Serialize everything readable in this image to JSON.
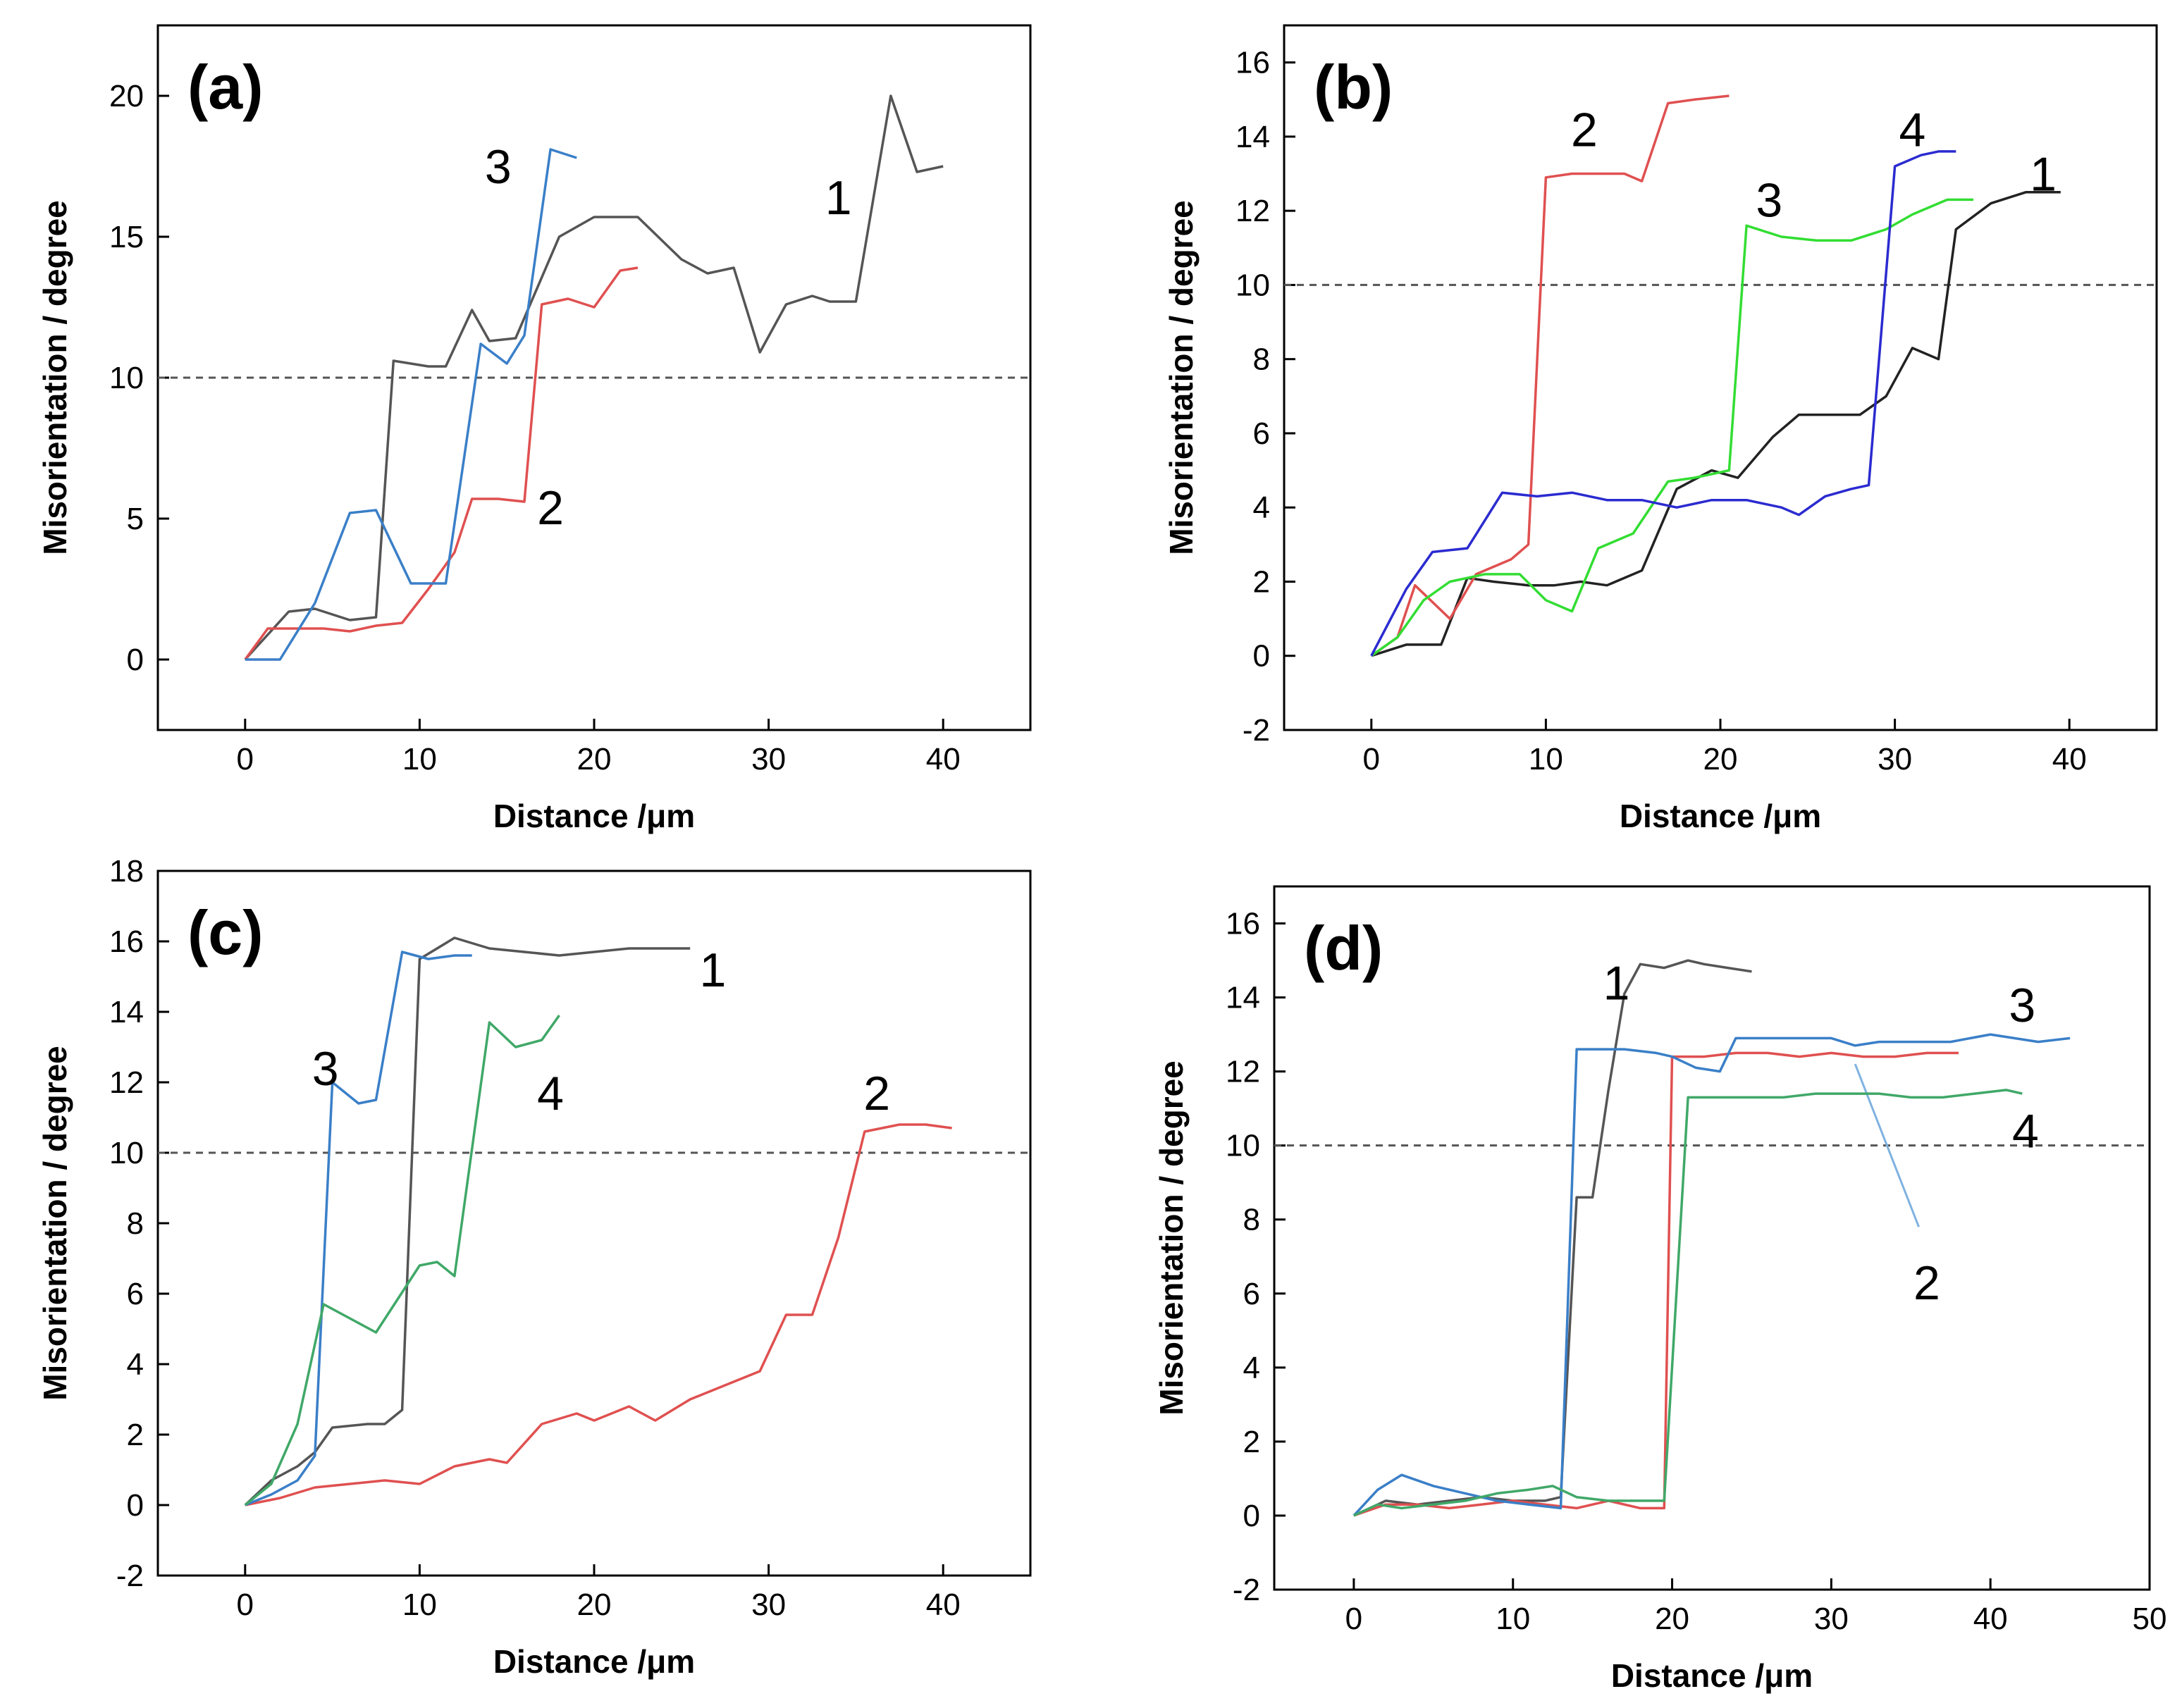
{
  "chart_data": [
    {
      "panel": "(a)",
      "type": "line",
      "xlabel": "Distance /μm",
      "ylabel": "Misorientation / degree",
      "xlim": [
        -5,
        45
      ],
      "ylim": [
        -2.5,
        22.5
      ],
      "xticks": [
        0,
        10,
        20,
        30,
        40
      ],
      "yticks": [
        0,
        5,
        10,
        15,
        20
      ],
      "threshold": 10,
      "series": [
        {
          "name": "1",
          "color": "#555555",
          "x": [
            0,
            2.5,
            4,
            6,
            7.5,
            8.5,
            10.5,
            11.5,
            13,
            14,
            15.5,
            18,
            20,
            22.5,
            25,
            26.5,
            28,
            29.5,
            31,
            32.5,
            33.5,
            35,
            37,
            38.5,
            40
          ],
          "y": [
            0,
            1.7,
            1.8,
            1.4,
            1.5,
            10.6,
            10.4,
            10.4,
            12.4,
            11.3,
            11.4,
            15,
            15.7,
            15.7,
            14.2,
            13.7,
            13.9,
            10.9,
            12.6,
            12.9,
            12.7,
            12.7,
            20,
            17.3,
            17.5
          ],
          "label_x": 34,
          "label_y": 16.4
        },
        {
          "name": "2",
          "color": "#e05050",
          "x": [
            0,
            1.3,
            3,
            4.5,
            6,
            7.5,
            9,
            10.5,
            12,
            13,
            14.5,
            16,
            17,
            18.5,
            20,
            21.5,
            22.5
          ],
          "y": [
            0,
            1.1,
            1.1,
            1.1,
            1,
            1.2,
            1.3,
            2.5,
            3.8,
            5.7,
            5.7,
            5.6,
            12.6,
            12.8,
            12.5,
            13.8,
            13.9
          ],
          "label_x": 17.5,
          "label_y": 5.4
        },
        {
          "name": "3",
          "color": "#3a7fc8",
          "x": [
            0,
            2,
            4,
            6,
            7.5,
            9.5,
            11.5,
            13.5,
            15,
            16,
            17.5,
            19
          ],
          "y": [
            0,
            0,
            2,
            5.2,
            5.3,
            2.7,
            2.7,
            11.2,
            10.5,
            11.5,
            18.1,
            17.8
          ],
          "label_x": 14.5,
          "label_y": 17.5
        }
      ]
    },
    {
      "panel": "(b)",
      "type": "line",
      "xlabel": "Distance /μm",
      "ylabel": "Misorientation / degree",
      "xlim": [
        -5,
        45
      ],
      "ylim": [
        -2,
        17
      ],
      "xticks": [
        0,
        10,
        20,
        30,
        40
      ],
      "yticks": [
        -2,
        0,
        2,
        4,
        6,
        8,
        10,
        12,
        14,
        16
      ],
      "threshold": 10,
      "series": [
        {
          "name": "1",
          "color": "#222222",
          "x": [
            0,
            2,
            4,
            5.5,
            7,
            9,
            10.5,
            12,
            13.5,
            15.5,
            17.5,
            19.5,
            21,
            23,
            24.5,
            26,
            28,
            29.5,
            31,
            32.5,
            33.5,
            35.5,
            37.5,
            39.5
          ],
          "y": [
            0,
            0.3,
            0.3,
            2.1,
            2,
            1.9,
            1.9,
            2,
            1.9,
            2.3,
            4.5,
            5,
            4.8,
            5.9,
            6.5,
            6.5,
            6.5,
            7,
            8.3,
            8,
            11.5,
            12.2,
            12.5,
            12.5
          ],
          "label_x": 38.5,
          "label_y": 13
        },
        {
          "name": "2",
          "color": "#e05050",
          "x": [
            0,
            1.5,
            2.5,
            4.5,
            6,
            8,
            9,
            10,
            11.5,
            13,
            14.5,
            15.5,
            17,
            18.5,
            20.5
          ],
          "y": [
            0,
            0.5,
            1.9,
            1,
            2.2,
            2.6,
            3,
            12.9,
            13,
            13,
            13,
            12.8,
            14.9,
            15,
            15.1
          ],
          "label_x": 12.2,
          "label_y": 14.2
        },
        {
          "name": "3",
          "color": "#33dd33",
          "x": [
            0,
            1.5,
            3,
            4.5,
            6.5,
            8.5,
            10,
            11.5,
            13,
            15,
            17,
            18.5,
            20.5,
            21.5,
            23.5,
            25.5,
            27.5,
            29.5,
            31,
            33,
            34.5
          ],
          "y": [
            0,
            0.5,
            1.5,
            2,
            2.2,
            2.2,
            1.5,
            1.2,
            2.9,
            3.3,
            4.7,
            4.8,
            5,
            11.6,
            11.3,
            11.2,
            11.2,
            11.5,
            11.9,
            12.3,
            12.3
          ],
          "label_x": 22.8,
          "label_y": 12.3
        },
        {
          "name": "4",
          "color": "#2b2bd0",
          "x": [
            0,
            2,
            3.5,
            5.5,
            7.5,
            9.5,
            11.5,
            13.5,
            15.5,
            17.5,
            19.5,
            21.5,
            23.5,
            24.5,
            26,
            27.5,
            28.5,
            30,
            31.5,
            32.5,
            33.5
          ],
          "y": [
            0,
            1.8,
            2.8,
            2.9,
            4.4,
            4.3,
            4.4,
            4.2,
            4.2,
            4,
            4.2,
            4.2,
            4,
            3.8,
            4.3,
            4.5,
            4.6,
            13.2,
            13.5,
            13.6,
            13.6
          ],
          "label_x": 31,
          "label_y": 14.2
        }
      ]
    },
    {
      "panel": "(c)",
      "type": "line",
      "xlabel": "Distance /μm",
      "ylabel": "Misorientation / degree",
      "xlim": [
        -5,
        45
      ],
      "ylim": [
        -2,
        18
      ],
      "xticks": [
        0,
        10,
        20,
        30,
        40
      ],
      "yticks": [
        -2,
        0,
        2,
        4,
        6,
        8,
        10,
        12,
        14,
        16,
        18
      ],
      "threshold": 10,
      "series": [
        {
          "name": "1",
          "color": "#555555",
          "x": [
            0,
            1.5,
            3,
            4,
            5,
            7,
            8,
            9,
            10,
            12,
            14,
            16,
            18,
            20,
            22,
            24,
            25.5
          ],
          "y": [
            0,
            0.7,
            1.1,
            1.5,
            2.2,
            2.3,
            2.3,
            2.7,
            15.5,
            16.1,
            15.8,
            15.7,
            15.6,
            15.7,
            15.8,
            15.8,
            15.8
          ],
          "label_x": 26.8,
          "label_y": 15.2
        },
        {
          "name": "2",
          "color": "#e05050",
          "x": [
            0,
            2,
            4,
            6,
            8,
            10,
            12,
            14,
            15,
            17,
            19,
            20,
            22,
            23.5,
            25.5,
            27.5,
            29.5,
            31,
            32.5,
            34,
            35.5,
            37.5,
            39,
            40.5
          ],
          "y": [
            0,
            0.2,
            0.5,
            0.6,
            0.7,
            0.6,
            1.1,
            1.3,
            1.2,
            2.3,
            2.6,
            2.4,
            2.8,
            2.4,
            3,
            3.4,
            3.8,
            5.4,
            5.4,
            7.6,
            10.6,
            10.8,
            10.8,
            10.7
          ],
          "label_x": 36.2,
          "label_y": 11.7
        },
        {
          "name": "3",
          "color": "#3a7fc8",
          "x": [
            0,
            1.5,
            3,
            4,
            5,
            6.5,
            7.5,
            9,
            10.5,
            12,
            13
          ],
          "y": [
            0,
            0.3,
            0.7,
            1.4,
            12,
            11.4,
            11.5,
            15.7,
            15.5,
            15.6,
            15.6
          ],
          "label_x": 4.6,
          "label_y": 12.4
        },
        {
          "name": "4",
          "color": "#40a868",
          "x": [
            0,
            1.5,
            3,
            4.5,
            7.5,
            10,
            11,
            12,
            14,
            15.5,
            17,
            18
          ],
          "y": [
            0,
            0.6,
            2.3,
            5.7,
            4.9,
            6.8,
            6.9,
            6.5,
            13.7,
            13,
            13.2,
            13.9
          ],
          "label_x": 17.5,
          "label_y": 11.7
        }
      ]
    },
    {
      "panel": "(d)",
      "type": "line",
      "xlabel": "Distance /μm",
      "ylabel": "Misorientation / degree",
      "xlim": [
        -5,
        50
      ],
      "ylim": [
        -2,
        17
      ],
      "xticks": [
        0,
        10,
        20,
        30,
        40,
        50
      ],
      "yticks": [
        -2,
        0,
        2,
        4,
        6,
        8,
        10,
        12,
        14,
        16
      ],
      "threshold": 10,
      "series": [
        {
          "name": "1",
          "color": "#555555",
          "x": [
            0,
            2,
            4,
            6,
            8,
            10,
            12,
            13,
            14,
            15,
            16,
            17,
            18,
            19.5,
            21,
            22,
            23.5,
            25
          ],
          "y": [
            0,
            0.4,
            0.3,
            0.4,
            0.5,
            0.4,
            0.4,
            0.5,
            8.6,
            8.6,
            11.5,
            14.1,
            14.9,
            14.8,
            15,
            14.9,
            14.8,
            14.7
          ],
          "label_x": 16.5,
          "label_y": 14.4
        },
        {
          "name": "2",
          "color": "#e05050",
          "x": [
            0,
            2,
            4,
            6,
            8,
            10,
            12,
            14,
            16,
            18,
            19.5,
            20,
            22,
            24,
            26,
            28,
            30,
            32,
            34,
            36,
            38
          ],
          "y": [
            0,
            0.3,
            0.3,
            0.2,
            0.3,
            0.4,
            0.3,
            0.2,
            0.4,
            0.2,
            0.2,
            12.4,
            12.4,
            12.5,
            12.5,
            12.4,
            12.5,
            12.4,
            12.4,
            12.5,
            12.5
          ],
          "label_x": 36,
          "label_y": 6.3
        },
        {
          "name": "3",
          "color": "#3a7fc8",
          "x": [
            0,
            1.5,
            3,
            5,
            7,
            9,
            11,
            13,
            14,
            15,
            17,
            19,
            20,
            21.5,
            23,
            24,
            26,
            28,
            30,
            31.5,
            33,
            35,
            37.5,
            40,
            41.5,
            43,
            45
          ],
          "y": [
            0,
            0.7,
            1.1,
            0.8,
            0.6,
            0.4,
            0.3,
            0.2,
            12.6,
            12.6,
            12.6,
            12.5,
            12.4,
            12.1,
            12,
            12.9,
            12.9,
            12.9,
            12.9,
            12.7,
            12.8,
            12.8,
            12.8,
            13,
            12.9,
            12.8,
            12.9
          ],
          "label_x": 42,
          "label_y": 13.8
        },
        {
          "name": "4",
          "color": "#40a868",
          "x": [
            0,
            1.5,
            3,
            5,
            7,
            9,
            11,
            12.5,
            14,
            16,
            18,
            19.5,
            21,
            23,
            25,
            27,
            29,
            31,
            33,
            35,
            37,
            39,
            41,
            42
          ],
          "y": [
            0,
            0.3,
            0.2,
            0.3,
            0.4,
            0.6,
            0.7,
            0.8,
            0.5,
            0.4,
            0.4,
            0.4,
            11.3,
            11.3,
            11.3,
            11.3,
            11.4,
            11.4,
            11.4,
            11.3,
            11.3,
            11.4,
            11.5,
            11.4
          ],
          "label_x": 42.2,
          "label_y": 10.4
        }
      ],
      "leader": {
        "from_x": 31.5,
        "from_y": 12.2,
        "to_x": 35.5,
        "to_y": 7.8,
        "color": "#7fb2e0"
      }
    }
  ]
}
